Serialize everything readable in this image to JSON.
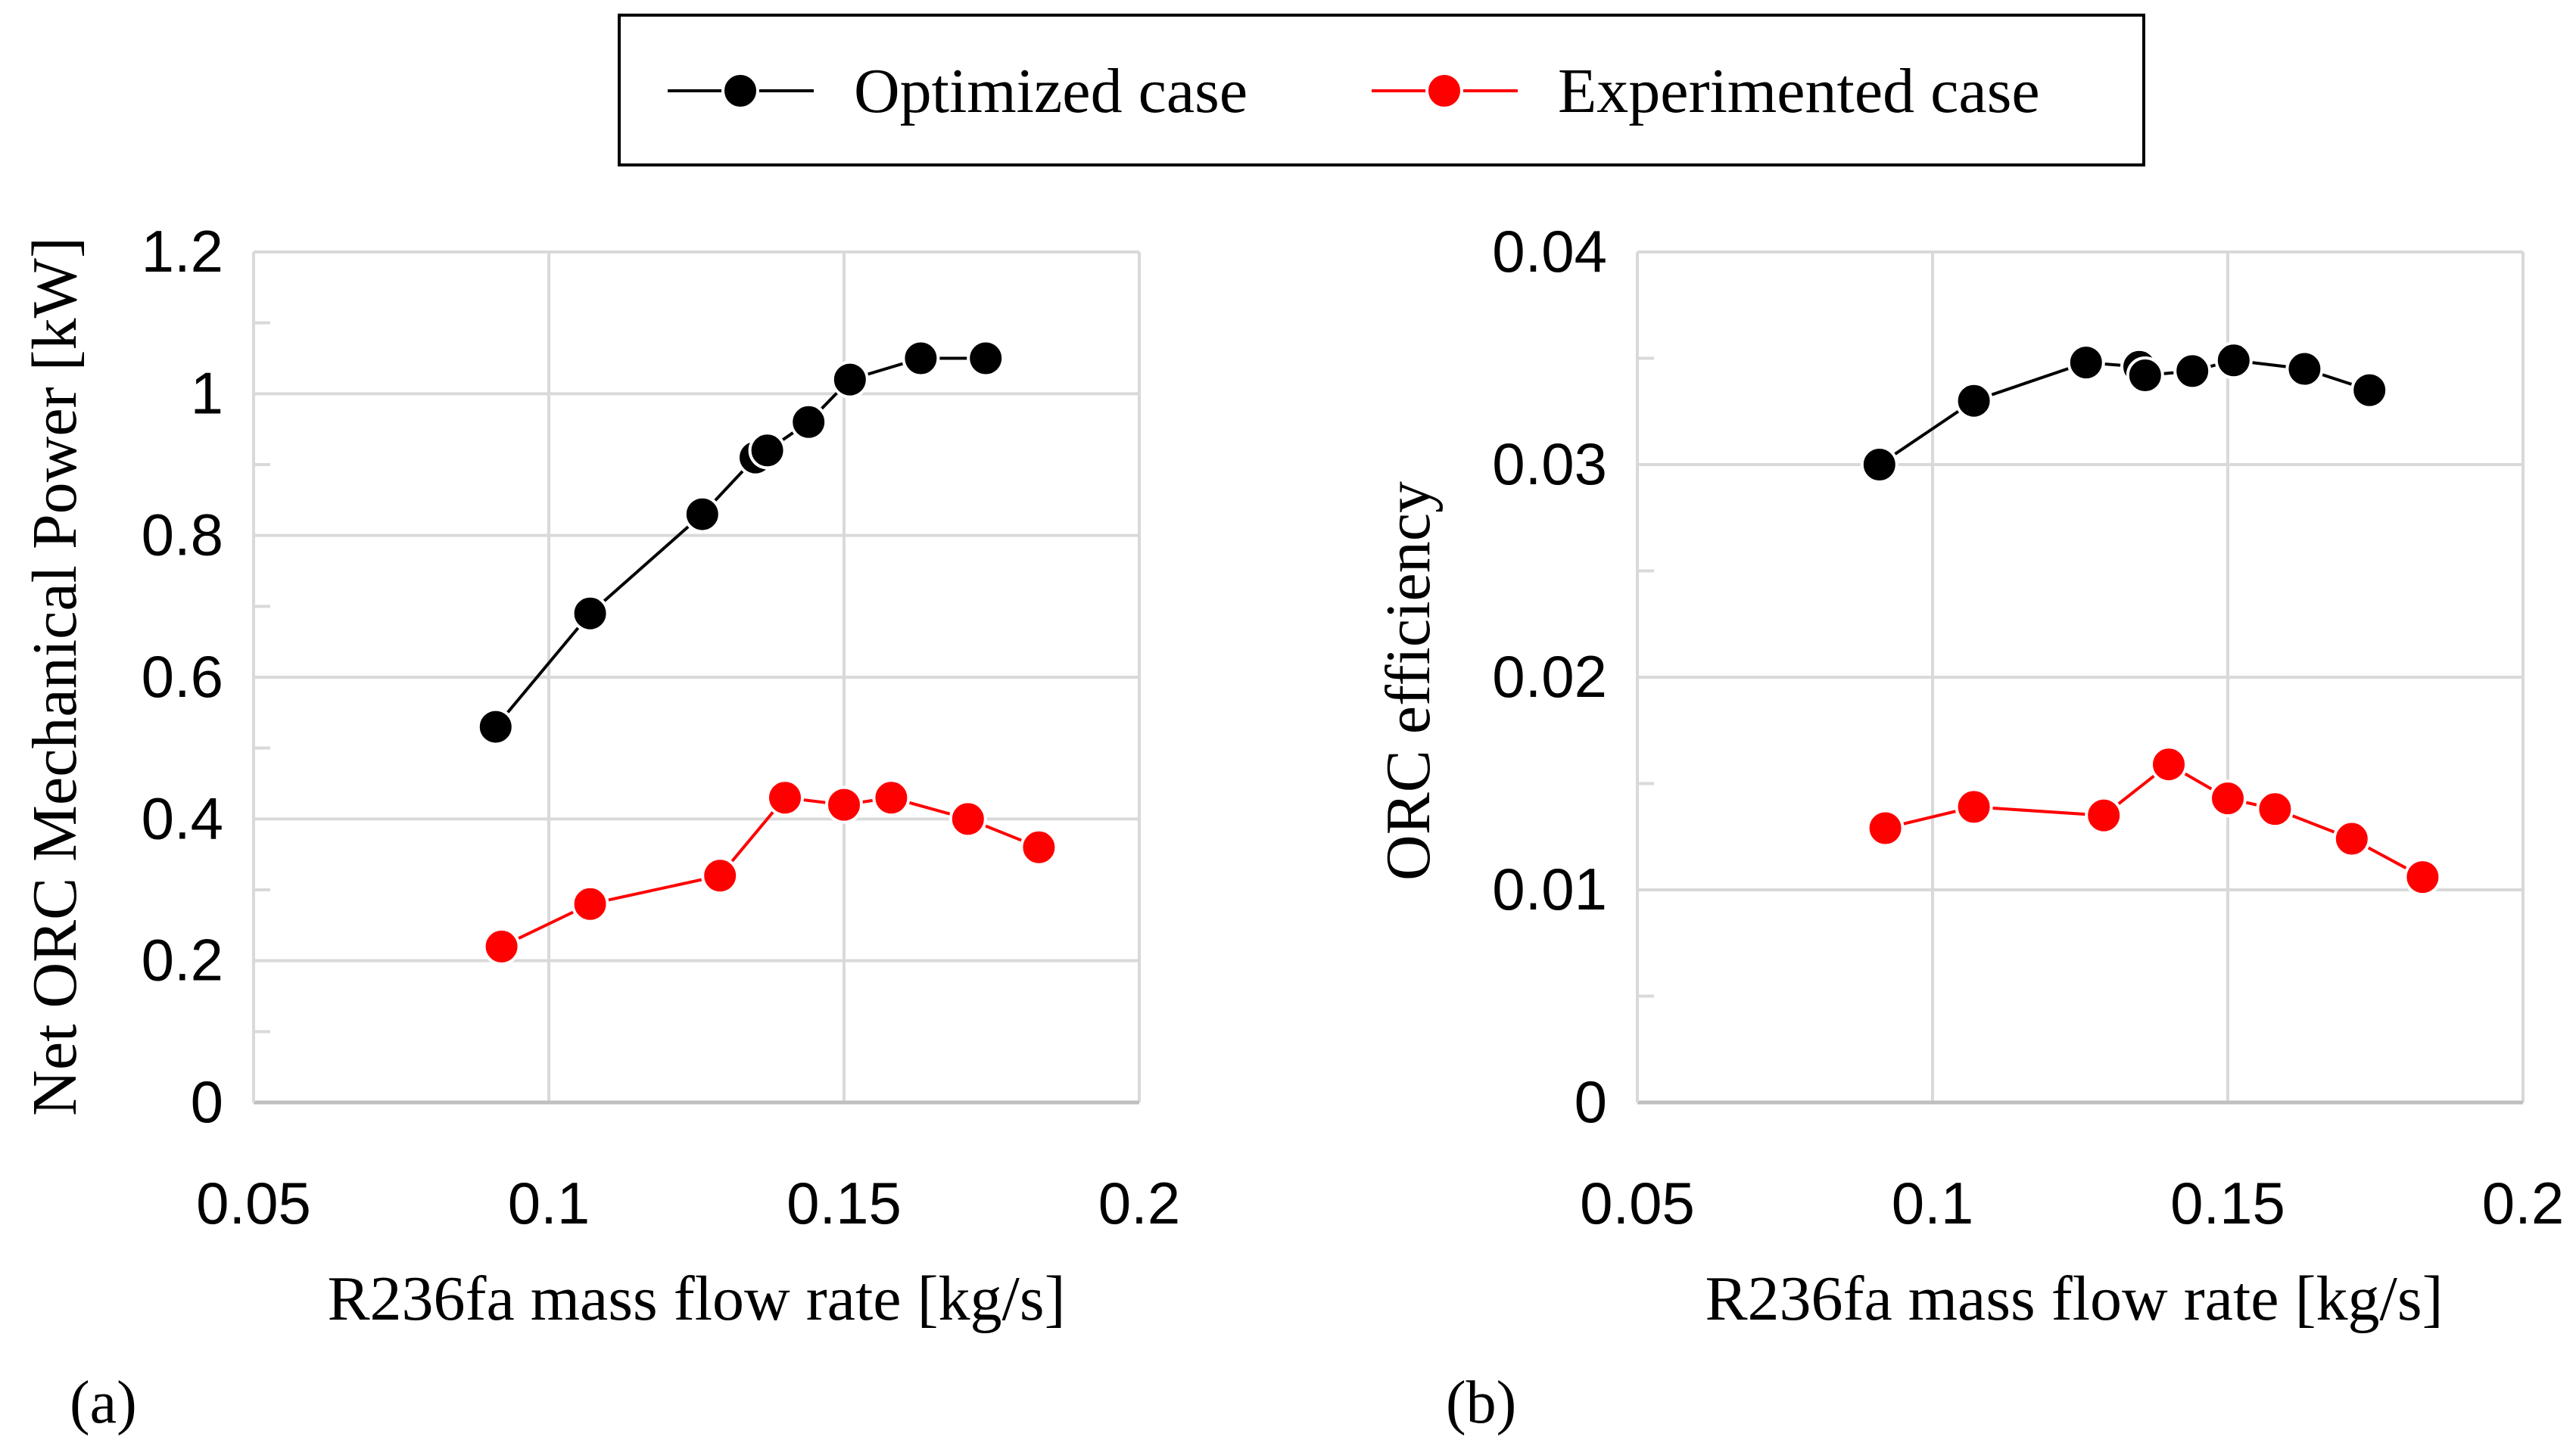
{
  "legend": {
    "items": [
      {
        "label": "Optimized case",
        "color": "#000000"
      },
      {
        "label": "Experimented case",
        "color": "#ff0000"
      }
    ]
  },
  "chart_data": [
    {
      "type": "line",
      "panel_label": "(a)",
      "title": "",
      "xlabel": "R236fa mass flow rate [kg/s]",
      "ylabel": "Net ORC Mechanical Power [kW]",
      "xlim": [
        0.05,
        0.2
      ],
      "ylim": [
        0,
        1.2
      ],
      "xticks": [
        0.05,
        0.1,
        0.15,
        0.2
      ],
      "xtick_labels": [
        "0.05",
        "0.1",
        "0.15",
        "0.2"
      ],
      "yticks": [
        0,
        0.2,
        0.4,
        0.6,
        0.8,
        1,
        1.2
      ],
      "ytick_labels": [
        "0",
        "0.2",
        "0.4",
        "0.6",
        "0.8",
        "1",
        "1.2"
      ],
      "grid": true,
      "series": [
        {
          "name": "Optimized case",
          "color": "#000000",
          "x": [
            0.091,
            0.107,
            0.126,
            0.135,
            0.137,
            0.144,
            0.151,
            0.163,
            0.174
          ],
          "y": [
            0.53,
            0.69,
            0.83,
            0.91,
            0.92,
            0.96,
            1.02,
            1.05,
            1.05
          ]
        },
        {
          "name": "Experimented case",
          "color": "#ff0000",
          "x": [
            0.092,
            0.107,
            0.129,
            0.14,
            0.15,
            0.158,
            0.171,
            0.183
          ],
          "y": [
            0.22,
            0.28,
            0.32,
            0.43,
            0.42,
            0.43,
            0.4,
            0.36
          ]
        }
      ]
    },
    {
      "type": "line",
      "panel_label": "(b)",
      "title": "",
      "xlabel": "R236fa mass flow rate [kg/s]",
      "ylabel": "ORC efficiency",
      "xlim": [
        0.05,
        0.2
      ],
      "ylim": [
        0,
        0.04
      ],
      "xticks": [
        0.05,
        0.1,
        0.15,
        0.2
      ],
      "xtick_labels": [
        "0.05",
        "0.1",
        "0.15",
        "0.2"
      ],
      "yticks": [
        0,
        0.01,
        0.02,
        0.03,
        0.04
      ],
      "ytick_labels": [
        "0",
        "0.01",
        "0.02",
        "0.03",
        "0.04"
      ],
      "grid": true,
      "series": [
        {
          "name": "Optimized case",
          "color": "#000000",
          "x": [
            0.091,
            0.107,
            0.126,
            0.135,
            0.136,
            0.144,
            0.151,
            0.163,
            0.174
          ],
          "y": [
            0.03,
            0.033,
            0.0348,
            0.0346,
            0.0342,
            0.0344,
            0.0349,
            0.0345,
            0.0335
          ]
        },
        {
          "name": "Experimented case",
          "color": "#ff0000",
          "x": [
            0.092,
            0.107,
            0.129,
            0.14,
            0.15,
            0.158,
            0.171,
            0.183
          ],
          "y": [
            0.0129,
            0.0139,
            0.0135,
            0.0159,
            0.0143,
            0.0138,
            0.0124,
            0.0106
          ]
        }
      ]
    }
  ]
}
